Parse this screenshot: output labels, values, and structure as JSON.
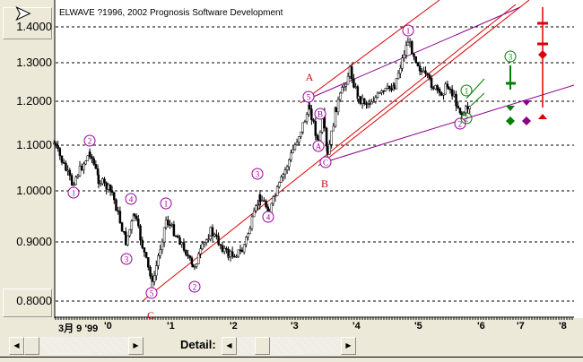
{
  "header": {
    "title": "ELWAVE ?1996, 2002 Prognosis Software Development"
  },
  "chart_data": {
    "type": "line",
    "title": "ELWAVE ?1996, 2002 Prognosis Software Development",
    "y_ticks": [
      "1.4000",
      "1.3000",
      "1.2000",
      "1.1000",
      "1.0000",
      "0.9000",
      "0.8000"
    ],
    "x_ticks": [
      "3月 9 '99",
      "'0",
      "'1",
      "'2",
      "'3",
      "'4",
      "'5",
      "'6",
      "'7",
      "'8"
    ],
    "ylim": [
      0.78,
      1.45
    ],
    "price_path": [
      [
        1999.09,
        1.104
      ],
      [
        1999.38,
        1.016
      ],
      [
        1999.67,
        1.084
      ],
      [
        1999.81,
        1.025
      ],
      [
        2000.03,
        0.996
      ],
      [
        2000.25,
        0.9
      ],
      [
        2000.39,
        0.953
      ],
      [
        2000.68,
        0.827
      ],
      [
        2000.9,
        0.944
      ],
      [
        2001.19,
        0.892
      ],
      [
        2001.33,
        0.855
      ],
      [
        2001.62,
        0.921
      ],
      [
        2001.91,
        0.877
      ],
      [
        2002.13,
        0.885
      ],
      [
        2002.42,
        0.988
      ],
      [
        2002.57,
        0.961
      ],
      [
        2003.22,
        1.186
      ],
      [
        2003.36,
        1.104
      ],
      [
        2003.43,
        1.165
      ],
      [
        2003.51,
        1.075
      ],
      [
        2003.65,
        1.186
      ],
      [
        2003.87,
        1.281
      ],
      [
        2004.01,
        1.207
      ],
      [
        2004.16,
        1.196
      ],
      [
        2004.59,
        1.242
      ],
      [
        2004.81,
        1.362
      ],
      [
        2005.03,
        1.276
      ],
      [
        2005.32,
        1.219
      ],
      [
        2005.46,
        1.242
      ],
      [
        2005.68,
        1.17
      ],
      [
        2005.83,
        1.196
      ]
    ],
    "wave_labels": [
      "1",
      "2",
      "4",
      "3",
      "5",
      "1",
      "2",
      "3",
      "4",
      "5",
      "B",
      "A",
      "C",
      "1",
      "2",
      "1",
      "2",
      "3"
    ],
    "letter_labels": [
      "A",
      "B",
      "C"
    ],
    "colors": {
      "wave": "#990099",
      "letter": "#cc0000",
      "green": "#008000",
      "red": "#dd0000",
      "purple": "#880088"
    }
  },
  "controls": {
    "detail_label": "Detail:",
    "left_arrow": "◀",
    "right_arrow": "▶"
  }
}
